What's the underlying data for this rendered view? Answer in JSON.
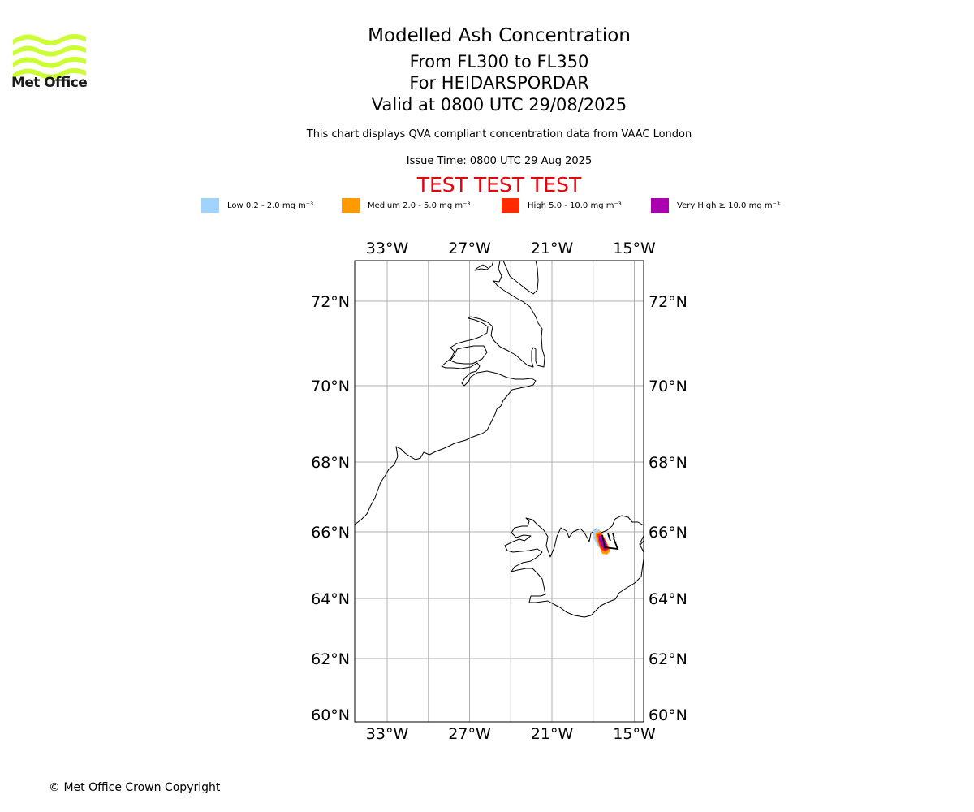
{
  "branding": {
    "name": "Met Office",
    "logo_color": "#ccff33"
  },
  "header": {
    "title": "Modelled Ash Concentration",
    "flight_levels": "From FL300 to FL350",
    "volcano": "For HEIDARSPORDAR",
    "valid": "Valid at 0800 UTC 29/08/2025",
    "description": "This chart displays QVA compliant concentration data from VAAC London",
    "issue_time": "Issue Time: 0800 UTC 29 Aug 2025",
    "test_banner": "TEST TEST TEST",
    "test_color": "#e8000b"
  },
  "legend": [
    {
      "label": "Low 0.2 - 2.0 mg m⁻³",
      "color": "#a0d4ff"
    },
    {
      "label": "Medium 2.0 - 5.0 mg m⁻³",
      "color": "#ff9a00"
    },
    {
      "label": "High 5.0 - 10.0 mg m⁻³",
      "color": "#ff2a00"
    },
    {
      "label": "Very High ≥ 10.0 mg m⁻³",
      "color": "#aa00b0"
    }
  ],
  "map": {
    "lon_ticks": [
      {
        "value": -33,
        "label": "33°W"
      },
      {
        "value": -27,
        "label": "27°W"
      },
      {
        "value": -21,
        "label": "21°W"
      },
      {
        "value": -15,
        "label": "15°W"
      }
    ],
    "lat_ticks": [
      {
        "value": 72,
        "label": "72°N"
      },
      {
        "value": 70,
        "label": "70°N"
      },
      {
        "value": 68,
        "label": "68°N"
      },
      {
        "value": 66,
        "label": "66°N"
      },
      {
        "value": 64,
        "label": "64°N"
      },
      {
        "value": 62,
        "label": "62°N"
      },
      {
        "value": 60,
        "label": "60°N"
      }
    ]
  },
  "footer": {
    "copyright": "© Met Office Crown Copyright"
  }
}
